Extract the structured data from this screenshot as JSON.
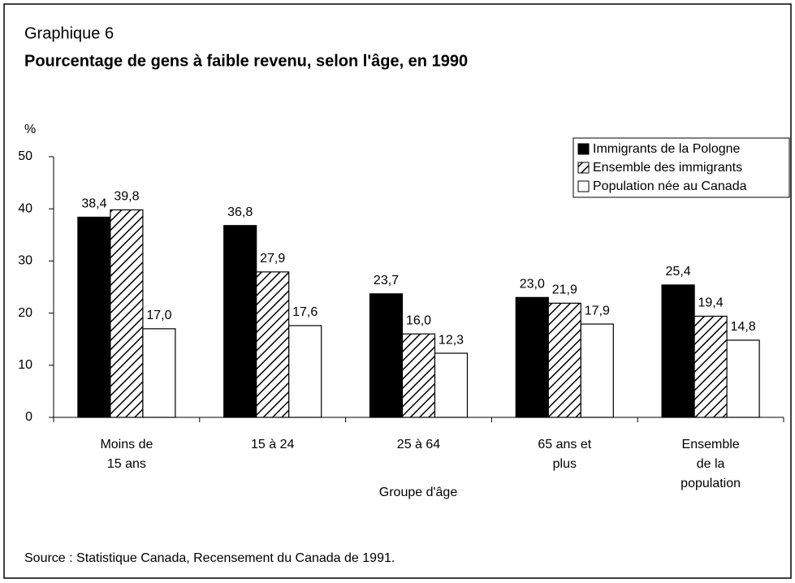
{
  "chart_data": {
    "type": "bar",
    "title": "Graphique 6",
    "subtitle": "Pourcentage de gens à faible revenu, selon l'âge, en 1990",
    "y_label": "%",
    "x_label": "Groupe d'âge",
    "source": "Source : Statistique Canada, Recensement du Canada de 1991.",
    "categories": [
      "Moins de\n15 ans",
      "15 à 24",
      "25 à 64",
      "65 ans et\nplus",
      "Ensemble\nde la\npopulation"
    ],
    "series": [
      {
        "name": "Immigrants de la Pologne",
        "color": "#000000",
        "pattern": "solid",
        "values": [
          38.4,
          36.8,
          23.7,
          23.0,
          25.4
        ],
        "value_labels": [
          "38,4",
          "36,8",
          "23,7",
          "23,0",
          "25,4"
        ]
      },
      {
        "name": "Ensemble des immigrants",
        "color": "#000000",
        "pattern": "hatch",
        "values": [
          39.8,
          27.9,
          16.0,
          21.9,
          19.4
        ],
        "value_labels": [
          "39,8",
          "27,9",
          "16,0",
          "21,9",
          "19,4"
        ]
      },
      {
        "name": "Population née au Canada",
        "color": "#ffffff",
        "pattern": "solid",
        "values": [
          17.0,
          17.6,
          12.3,
          17.9,
          14.8
        ],
        "value_labels": [
          "17,0",
          "17,6",
          "12,3",
          "17,9",
          "14,8"
        ]
      }
    ],
    "ylim": [
      0,
      50
    ],
    "yticks": [
      0,
      10,
      20,
      30,
      40,
      50
    ],
    "legend": "top-right",
    "grid": false
  }
}
